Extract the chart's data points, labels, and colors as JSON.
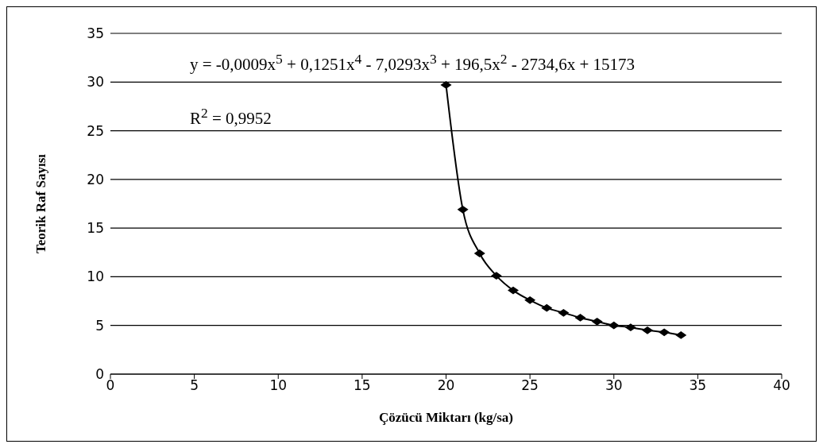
{
  "chart_data": {
    "type": "line",
    "xlabel": "Çözücü Miktarı (kg/sa)",
    "ylabel": "Teorik Raf Sayısı",
    "annotations": [
      "y = -0,0009x$^{5}$ + 0,1251x$^{4}$ - 7,0293x$^{3}$ + 196,5x$^{2}$ - 2734,6x + 15173",
      "R$^{2}$ = 0,9952"
    ],
    "x": [
      20,
      21,
      22,
      23,
      24,
      25,
      26,
      27,
      28,
      29,
      30,
      31,
      32,
      33,
      34
    ],
    "series": [
      {
        "color": "#000000",
        "values": [
          29.7,
          16.9,
          12.4,
          10.1,
          8.6,
          7.6,
          6.8,
          6.3,
          5.8,
          5.4,
          5.0,
          4.8,
          4.5,
          4.3,
          4.0
        ]
      }
    ],
    "xlim": [
      0,
      40
    ],
    "xticks": [
      0,
      5,
      10,
      15,
      20,
      25,
      30,
      35,
      40
    ],
    "ylim": [
      0,
      35
    ],
    "yticks": [
      0,
      5,
      10,
      15,
      20,
      25,
      30,
      35
    ],
    "grid": "y",
    "legend": false,
    "marker": "diamond",
    "line_style": "solid"
  }
}
